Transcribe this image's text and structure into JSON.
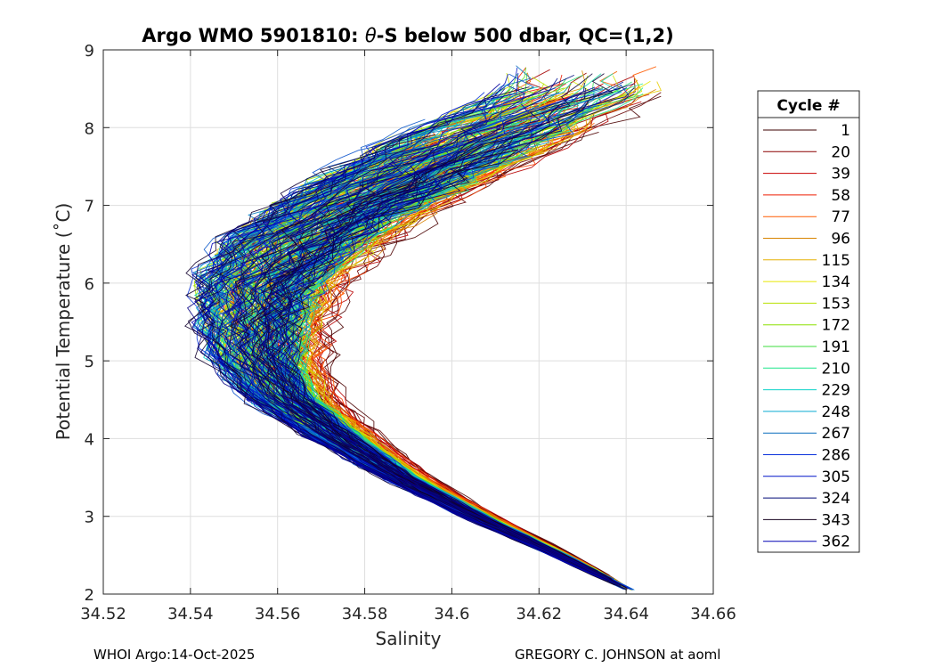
{
  "chart_data": {
    "type": "line",
    "title_parts": [
      "Argo WMO 5901810: ",
      "θ",
      "-S below 500 dbar,  QC=(1,2)"
    ],
    "xlabel": "Salinity",
    "ylabel": "Potential Temperature (˚C)",
    "xlim": [
      34.52,
      34.66
    ],
    "ylim": [
      2,
      9
    ],
    "xticks": [
      34.52,
      34.54,
      34.56,
      34.58,
      34.6,
      34.62,
      34.64,
      34.66
    ],
    "xtick_labels": [
      "34.52",
      "34.54",
      "34.56",
      "34.58",
      "34.6",
      "34.62",
      "34.64",
      "34.66"
    ],
    "yticks": [
      2,
      3,
      4,
      5,
      6,
      7,
      8,
      9
    ],
    "ytick_labels": [
      "2",
      "3",
      "4",
      "5",
      "6",
      "7",
      "8",
      "9"
    ],
    "grid": true,
    "legend": {
      "title": "Cycle #",
      "placement": "right-outside",
      "entries": [
        {
          "label": "1",
          "color": "#3d0000"
        },
        {
          "label": "20",
          "color": "#8b0000"
        },
        {
          "label": "39",
          "color": "#c80000"
        },
        {
          "label": "58",
          "color": "#ee1c00"
        },
        {
          "label": "77",
          "color": "#ff5a00"
        },
        {
          "label": "96",
          "color": "#d88400"
        },
        {
          "label": "115",
          "color": "#e6b000"
        },
        {
          "label": "134",
          "color": "#e8e800"
        },
        {
          "label": "153",
          "color": "#b8e000"
        },
        {
          "label": "172",
          "color": "#8ce000"
        },
        {
          "label": "191",
          "color": "#3cdc3c"
        },
        {
          "label": "210",
          "color": "#1ee68c"
        },
        {
          "label": "229",
          "color": "#0ad2c8"
        },
        {
          "label": "248",
          "color": "#0aaad2"
        },
        {
          "label": "267",
          "color": "#0a6ebe"
        },
        {
          "label": "286",
          "color": "#0a32dc"
        },
        {
          "label": "305",
          "color": "#0014c8"
        },
        {
          "label": "324",
          "color": "#000a78"
        },
        {
          "label": "343",
          "color": "#14001e"
        },
        {
          "label": "362",
          "color": "#0000b4"
        }
      ]
    },
    "envelope": {
      "description": "theta-S curves; salinity minimum near 5.3 C",
      "theta": [
        2.05,
        2.5,
        3.0,
        3.5,
        4.0,
        4.5,
        5.0,
        5.5,
        6.0,
        6.5,
        7.0,
        7.5,
        8.0,
        8.5
      ],
      "salinity_center": [
        34.641,
        34.625,
        34.606,
        34.589,
        34.575,
        34.563,
        34.557,
        34.556,
        34.558,
        34.565,
        34.578,
        34.594,
        34.612,
        34.63
      ],
      "spread": [
        0.001,
        0.002,
        0.003,
        0.004,
        0.006,
        0.008,
        0.01,
        0.012,
        0.014,
        0.016,
        0.017,
        0.018,
        0.018,
        0.016
      ]
    },
    "profile_count": 362
  },
  "footer": {
    "left": "WHOI Argo:14-Oct-2025",
    "right": "GREGORY C. JOHNSON at aoml"
  }
}
